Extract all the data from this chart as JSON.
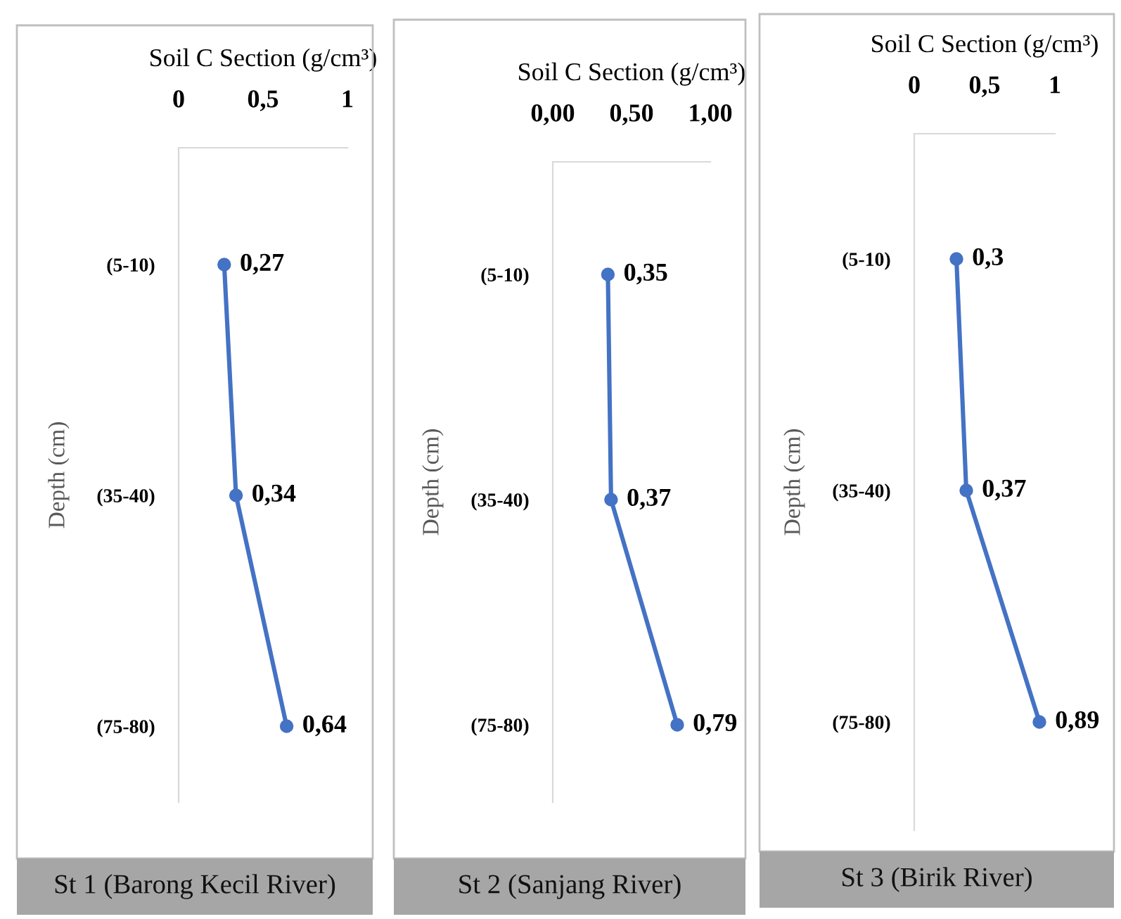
{
  "chart_data": [
    {
      "type": "line",
      "orientation": "horizontal",
      "xlabel": "Soil C Section (g/cm³)",
      "ylabel": "Depth (cm)",
      "categories": [
        "(5-10)",
        "(35-40)",
        "(75-80)"
      ],
      "xlim": [
        0,
        1
      ],
      "xticks": [
        0,
        {
          "value": 0.5,
          "label": "0,5"
        },
        1
      ],
      "marker": "circle",
      "line_style": "solid",
      "series": [
        {
          "color": "#4472c4",
          "values": [
            0.27,
            0.34,
            0.64
          ],
          "value_labels": [
            "0,27",
            "0,34",
            "0,64"
          ]
        }
      ],
      "annotations": [
        "St 1 (Barong Kecil River)"
      ]
    },
    {
      "type": "line",
      "orientation": "horizontal",
      "xlabel": "Soil C Section (g/cm³)",
      "ylabel": "Depth (cm)",
      "categories": [
        "(5-10)",
        "(35-40)",
        "(75-80)"
      ],
      "xlim": [
        0,
        1
      ],
      "xticks": [
        {
          "value": 0,
          "label": "0,00"
        },
        {
          "value": 0.5,
          "label": "0,50"
        },
        {
          "value": 1,
          "label": "1,00"
        }
      ],
      "marker": "circle",
      "line_style": "solid",
      "series": [
        {
          "color": "#4472c4",
          "values": [
            0.35,
            0.37,
            0.79
          ],
          "value_labels": [
            "0,35",
            "0,37",
            "0,79"
          ]
        }
      ],
      "annotations": [
        "St 2 (Sanjang River)"
      ]
    },
    {
      "type": "line",
      "orientation": "horizontal",
      "xlabel": "Soil C Section (g/cm³)",
      "ylabel": "Depth (cm)",
      "categories": [
        "(5-10)",
        "(35-40)",
        "(75-80)"
      ],
      "xlim": [
        0,
        1
      ],
      "xticks": [
        0,
        {
          "value": 0.5,
          "label": "0,5"
        },
        1
      ],
      "marker": "circle",
      "line_style": "solid",
      "series": [
        {
          "color": "#4472c4",
          "values": [
            0.3,
            0.37,
            0.89
          ],
          "value_labels": [
            "0,3",
            "0,37",
            "0,89"
          ]
        }
      ],
      "annotations": [
        "St 3 (Birik River)"
      ]
    }
  ]
}
